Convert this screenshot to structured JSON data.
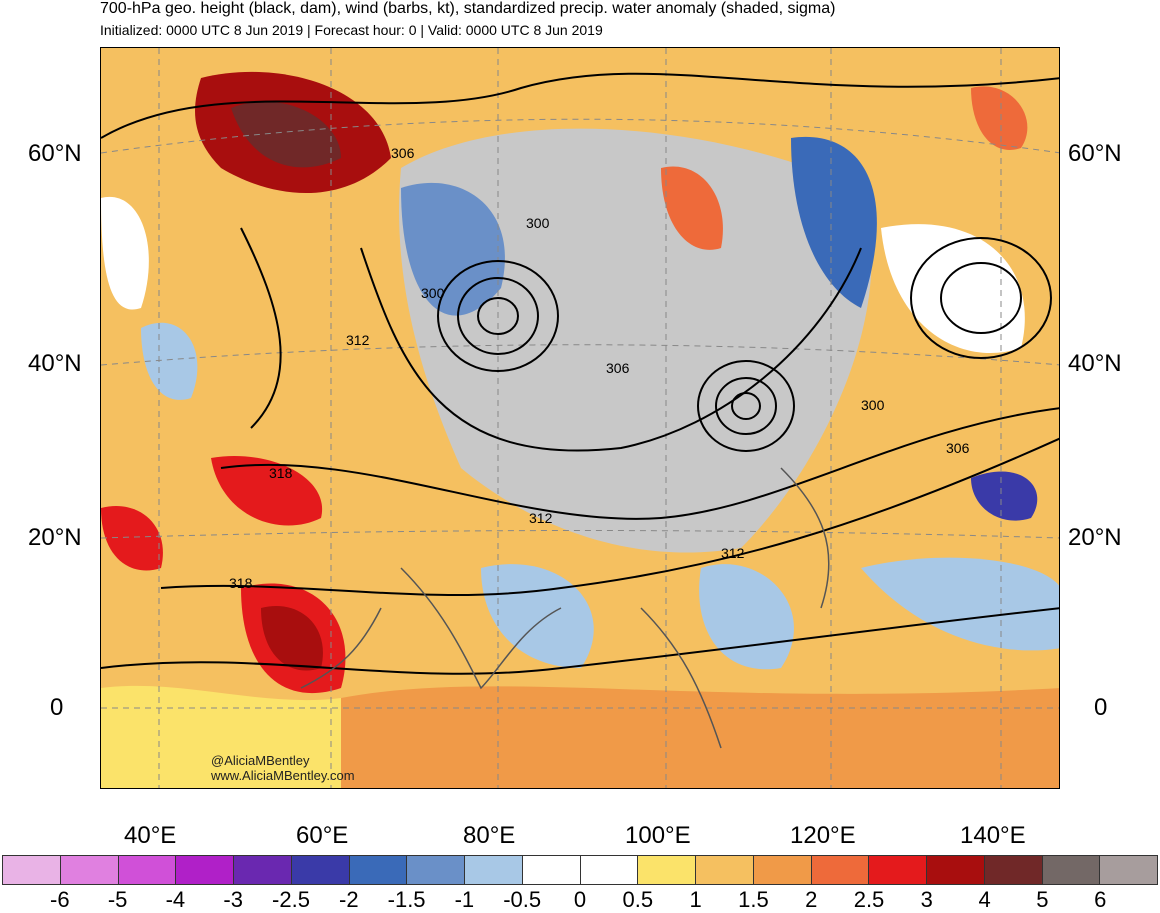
{
  "header": {
    "title": "700-hPa geo. height (black, dam), wind (barbs, kt), standardized precip. water anomaly (shaded, sigma)",
    "subtitle": "Initialized: 0000 UTC 8 Jun 2019 | Forecast hour: 0 | Valid: 0000 UTC 8 Jun 2019"
  },
  "map": {
    "lat_labels": [
      "60°N",
      "40°N",
      "20°N",
      "0"
    ],
    "lon_labels": [
      "40°E",
      "60°E",
      "80°E",
      "100°E",
      "120°E",
      "140°E"
    ],
    "contour_labels": [
      "306",
      "300",
      "312",
      "300",
      "306",
      "300",
      "306",
      "318",
      "312",
      "312",
      "318"
    ],
    "credit_handle": "@AliciaMBentley",
    "credit_url": "www.AliciaMBentley.com"
  },
  "colorbar": {
    "tick_labels": [
      "-6",
      "-5",
      "-4",
      "-3",
      "-2.5",
      "-2",
      "-1.5",
      "-1",
      "-0.5",
      "0",
      "0.5",
      "1",
      "1.5",
      "2",
      "2.5",
      "3",
      "4",
      "5",
      "6"
    ],
    "colors": [
      "#e9b3e6",
      "#e080e0",
      "#d050d8",
      "#b020c8",
      "#6a28b0",
      "#3a3aa8",
      "#3a6ab8",
      "#6a90c8",
      "#a8c8e6",
      "#ffffff",
      "#ffffff",
      "#fbe36a",
      "#f5c060",
      "#f09a48",
      "#ee6a3a",
      "#e41a1c",
      "#a80e0e",
      "#702828",
      "#736866",
      "#a79d9d"
    ]
  }
}
